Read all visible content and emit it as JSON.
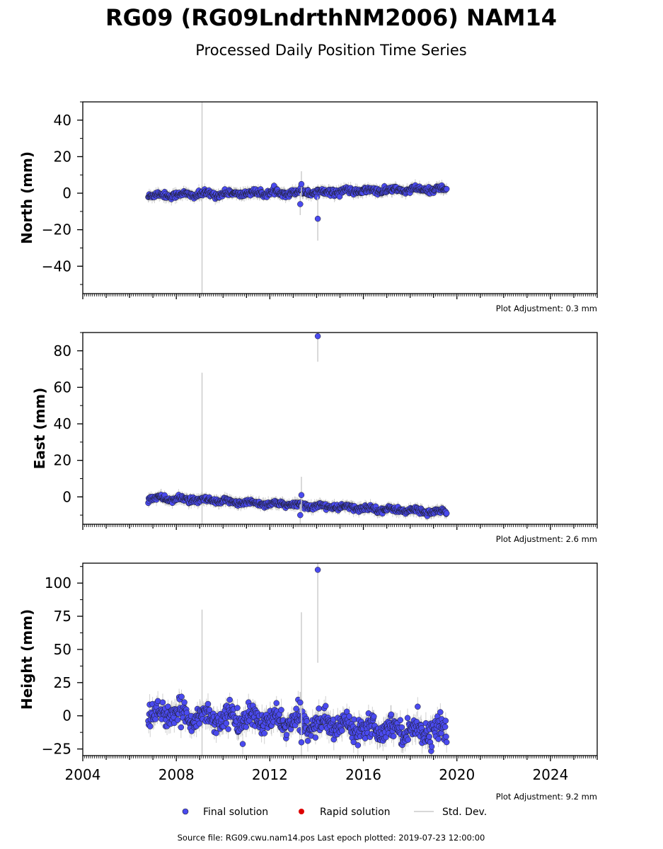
{
  "figure": {
    "title": "RG09 (RG09LndrthNM2006) NAM14",
    "subtitle": "Processed Daily Position Time Series",
    "footer": "Source file: RG09.cwu.nam14.pos  Last epoch plotted: 2019-07-23 12:00:00"
  },
  "legend": {
    "final_label": "Final solution",
    "rapid_label": "Rapid solution",
    "std_label": "Std. Dev.",
    "final_color": "#4a4aef",
    "rapid_color": "#dd0000",
    "std_color": "#cccccc"
  },
  "chart_data": [
    {
      "type": "scatter",
      "ylabel": "North (mm)",
      "xlim": [
        2004,
        2026
      ],
      "ylim": [
        -55,
        50
      ],
      "yticks": [
        -40,
        -20,
        0,
        20,
        40
      ],
      "xticks": [
        2004,
        2008,
        2012,
        2016,
        2020,
        2024
      ],
      "show_xtick_labels": false,
      "adjustment": "Plot Adjustment: 0.3 mm",
      "series": [
        {
          "name": "Final solution",
          "summary": {
            "start": 2006.8,
            "end": 2019.56,
            "level_start": -1.2,
            "level_end": 2.2,
            "scatter": 1.2,
            "std": 2.5
          },
          "outliers": [
            {
              "x": 2013.3,
              "y": -6,
              "std": 6
            },
            {
              "x": 2013.35,
              "y": 5,
              "std": 7
            },
            {
              "x": 2014.05,
              "y": -14,
              "std": 12
            }
          ],
          "long_std": [
            {
              "x": 2009.1,
              "y": 0,
              "std": 60
            }
          ]
        }
      ]
    },
    {
      "type": "scatter",
      "ylabel": "East (mm)",
      "xlim": [
        2004,
        2026
      ],
      "ylim": [
        -15,
        90
      ],
      "yticks": [
        0,
        20,
        40,
        60,
        80
      ],
      "xticks": [
        2004,
        2008,
        2012,
        2016,
        2020,
        2024
      ],
      "show_xtick_labels": false,
      "adjustment": "Plot Adjustment: 2.6 mm",
      "series": [
        {
          "name": "Final solution",
          "summary": {
            "start": 2006.8,
            "end": 2019.56,
            "level_start": -0.5,
            "level_end": -8.5,
            "scatter": 1.1,
            "std": 2.5
          },
          "outliers": [
            {
              "x": 2013.3,
              "y": -10,
              "std": 6
            },
            {
              "x": 2013.35,
              "y": 1,
              "std": 10
            },
            {
              "x": 2014.05,
              "y": 88,
              "std": 14
            }
          ],
          "long_std": [
            {
              "x": 2009.1,
              "y": 0,
              "std": 68
            }
          ]
        }
      ]
    },
    {
      "type": "scatter",
      "ylabel": "Height (mm)",
      "xlim": [
        2004,
        2026
      ],
      "ylim": [
        -30,
        115
      ],
      "yticks": [
        -25,
        0,
        25,
        50,
        75,
        100
      ],
      "xticks": [
        2004,
        2008,
        2012,
        2016,
        2020,
        2024
      ],
      "xtick_labels": [
        "2004",
        "2008",
        "2012",
        "2016",
        "2020",
        "2024"
      ],
      "show_xtick_labels": true,
      "adjustment": "Plot Adjustment: 9.2 mm",
      "series": [
        {
          "name": "Final solution",
          "summary": {
            "start": 2006.8,
            "end": 2019.56,
            "level_start": 2,
            "level_end": -12,
            "scatter": 6,
            "std": 6
          },
          "outliers": [
            {
              "x": 2013.3,
              "y": 10,
              "std": 8
            },
            {
              "x": 2013.35,
              "y": -20,
              "std": 98
            },
            {
              "x": 2014.05,
              "y": 110,
              "std": 70
            }
          ],
          "long_std": [
            {
              "x": 2009.1,
              "y": 0,
              "std": 80
            }
          ]
        }
      ]
    }
  ]
}
